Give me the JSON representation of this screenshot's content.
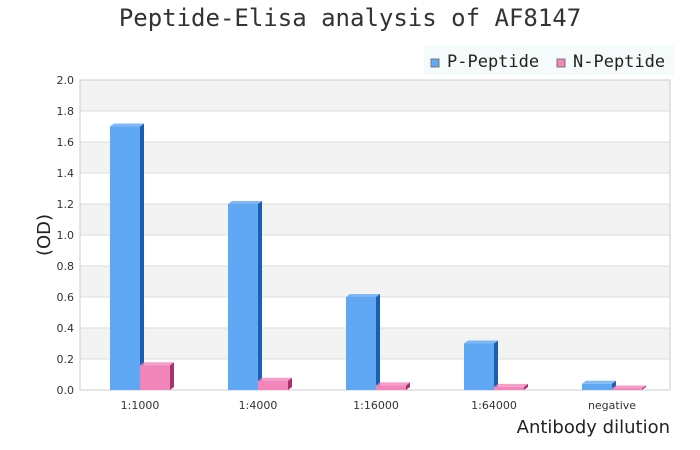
{
  "chart_data": {
    "type": "bar",
    "title": "Peptide-Elisa analysis of AF8147",
    "xlabel": "Antibody dilution",
    "ylabel": "(OD)",
    "categories": [
      "1:1000",
      "1:4000",
      "1:16000",
      "1:64000",
      "negative"
    ],
    "series": [
      {
        "name": "P-Peptide",
        "values": [
          1.7,
          1.2,
          0.6,
          0.3,
          0.04
        ],
        "color": "#60a8f4",
        "side": "#1a5fb4"
      },
      {
        "name": "N-Peptide",
        "values": [
          0.16,
          0.06,
          0.03,
          0.02,
          0.01
        ],
        "color": "#f286ba",
        "side": "#a8326e"
      }
    ],
    "ylim": [
      0,
      2.0
    ],
    "yticks": [
      "0.0",
      "0.2",
      "0.4",
      "0.6",
      "0.8",
      "1.0",
      "1.2",
      "1.4",
      "1.6",
      "1.8",
      "2.0"
    ],
    "grid": true,
    "legend": "top-right"
  }
}
